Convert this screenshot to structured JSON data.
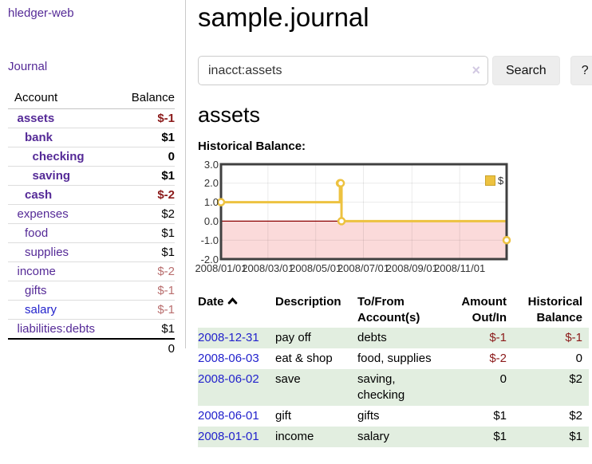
{
  "app_title": "hledger-web",
  "sidebar": {
    "journal_link": "Journal",
    "accounts": {
      "header_account": "Account",
      "header_balance": "Balance",
      "rows": [
        {
          "name": "assets",
          "balance": "$-1",
          "depth": 1,
          "bold": true,
          "negative": true,
          "muted": false,
          "blue": false
        },
        {
          "name": "bank",
          "balance": "$1",
          "depth": 2,
          "bold": true,
          "negative": false,
          "muted": false,
          "blue": false
        },
        {
          "name": "checking",
          "balance": "0",
          "depth": 3,
          "bold": true,
          "negative": false,
          "muted": false,
          "blue": false
        },
        {
          "name": "saving",
          "balance": "$1",
          "depth": 3,
          "bold": true,
          "negative": false,
          "muted": false,
          "blue": false
        },
        {
          "name": "cash",
          "balance": "$-2",
          "depth": 2,
          "bold": true,
          "negative": true,
          "muted": false,
          "blue": false
        },
        {
          "name": "expenses",
          "balance": "$2",
          "depth": 1,
          "bold": false,
          "negative": false,
          "muted": false,
          "blue": false
        },
        {
          "name": "food",
          "balance": "$1",
          "depth": 2,
          "bold": false,
          "negative": false,
          "muted": false,
          "blue": false
        },
        {
          "name": "supplies",
          "balance": "$1",
          "depth": 2,
          "bold": false,
          "negative": false,
          "muted": false,
          "blue": false
        },
        {
          "name": "income",
          "balance": "$-2",
          "depth": 1,
          "bold": false,
          "negative": true,
          "muted": true,
          "blue": false
        },
        {
          "name": "gifts",
          "balance": "$-1",
          "depth": 2,
          "bold": false,
          "negative": true,
          "muted": true,
          "blue": false
        },
        {
          "name": "salary",
          "balance": "$-1",
          "depth": 2,
          "bold": false,
          "negative": true,
          "muted": true,
          "blue": true
        },
        {
          "name": "liabilities:debts",
          "balance": "$1",
          "depth": 1,
          "bold": false,
          "negative": false,
          "muted": false,
          "blue": false
        }
      ],
      "total": "0"
    }
  },
  "main": {
    "title": "sample.journal",
    "search": {
      "value": "inacct:assets",
      "clear_icon": "×",
      "search_button": "Search",
      "help_button": "?"
    },
    "account_title": "assets",
    "chart_label": "Historical Balance:"
  },
  "chart_data": {
    "type": "line",
    "step": true,
    "title": "Historical Balance:",
    "legend": "$",
    "legend_position": "top-right",
    "grid": true,
    "xrange": [
      "2008/01/01",
      "2008/12/31"
    ],
    "ylim": [
      -2.0,
      3.0
    ],
    "yticks": [
      "3.0",
      "2.0",
      "1.0",
      "0.0",
      "-1.0",
      "-2.0"
    ],
    "xticks": [
      "2008/01/01",
      "2008/03/01",
      "2008/05/01",
      "2008/07/01",
      "2008/09/01",
      "2008/11/01"
    ],
    "series": [
      {
        "name": "$",
        "color": "#edc240",
        "points": [
          {
            "x": "2008/01/01",
            "y": 1
          },
          {
            "x": "2008/06/01",
            "y": 2
          },
          {
            "x": "2008/06/02",
            "y": 2
          },
          {
            "x": "2008/06/03",
            "y": 0
          },
          {
            "x": "2008/12/31",
            "y": -1
          }
        ]
      }
    ],
    "negative_region_color": "#fbdada",
    "zero_line_color": "#8b0000",
    "border_color": "#404040"
  },
  "register": {
    "headers": [
      "Date",
      "Description",
      "To/From Account(s)",
      "Amount Out/In",
      "Historical Balance"
    ],
    "rows": [
      {
        "date": "2008-12-31",
        "description": "pay off",
        "accounts": "debts",
        "amount": "$-1",
        "amount_negative": true,
        "balance": "$-1",
        "balance_negative": true
      },
      {
        "date": "2008-06-03",
        "description": "eat & shop",
        "accounts": "food, supplies",
        "amount": "$-2",
        "amount_negative": true,
        "balance": "0",
        "balance_negative": false
      },
      {
        "date": "2008-06-02",
        "description": "save",
        "accounts": "saving, checking",
        "amount": "0",
        "amount_negative": false,
        "balance": "$2",
        "balance_negative": false
      },
      {
        "date": "2008-06-01",
        "description": "gift",
        "accounts": "gifts",
        "amount": "$1",
        "amount_negative": false,
        "balance": "$2",
        "balance_negative": false
      },
      {
        "date": "2008-01-01",
        "description": "income",
        "accounts": "salary",
        "amount": "$1",
        "amount_negative": false,
        "balance": "$1",
        "balance_negative": false
      }
    ]
  }
}
